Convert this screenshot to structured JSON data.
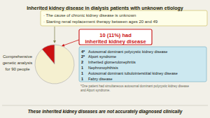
{
  "chart_data": {
    "type": "pie",
    "title": "Inherited kidney disease in dialysis patients with unknown etiology",
    "values": [
      10,
      80
    ],
    "colors": [
      "#cc1111",
      "#f5f0d0"
    ],
    "bullets": [
      "· The cause of chronic kidney disease is unknown",
      "· Starting renal replacement therapy between ages 20 and 49"
    ],
    "left_label": "Comprehensive\ngenetic analysis\nfor 90 people",
    "highlight": [
      "10 (11%) had",
      "inherited kidney disease"
    ],
    "disease_list": [
      {
        "count": "4*",
        "name": "Autosomal dominant polycystic kidney disease"
      },
      {
        "count": "2*",
        "name": "Alport syndrome"
      },
      {
        "count": "2",
        "name": "Inherited glomerulonephritis"
      },
      {
        "count": "1",
        "name": "Nephronophthisis"
      },
      {
        "count": "1",
        "name": "Autosomal dominant tubulointerstitial kidney disease"
      },
      {
        "count": "1",
        "name": "Fabry disease"
      }
    ],
    "footnote": "*One patient had simultaneous autosomal dominant polycystic kidney disease\nand Alport syndrome.",
    "bottom_text": "These inherited kidney diseases are not accurately diagnosed clinically"
  }
}
